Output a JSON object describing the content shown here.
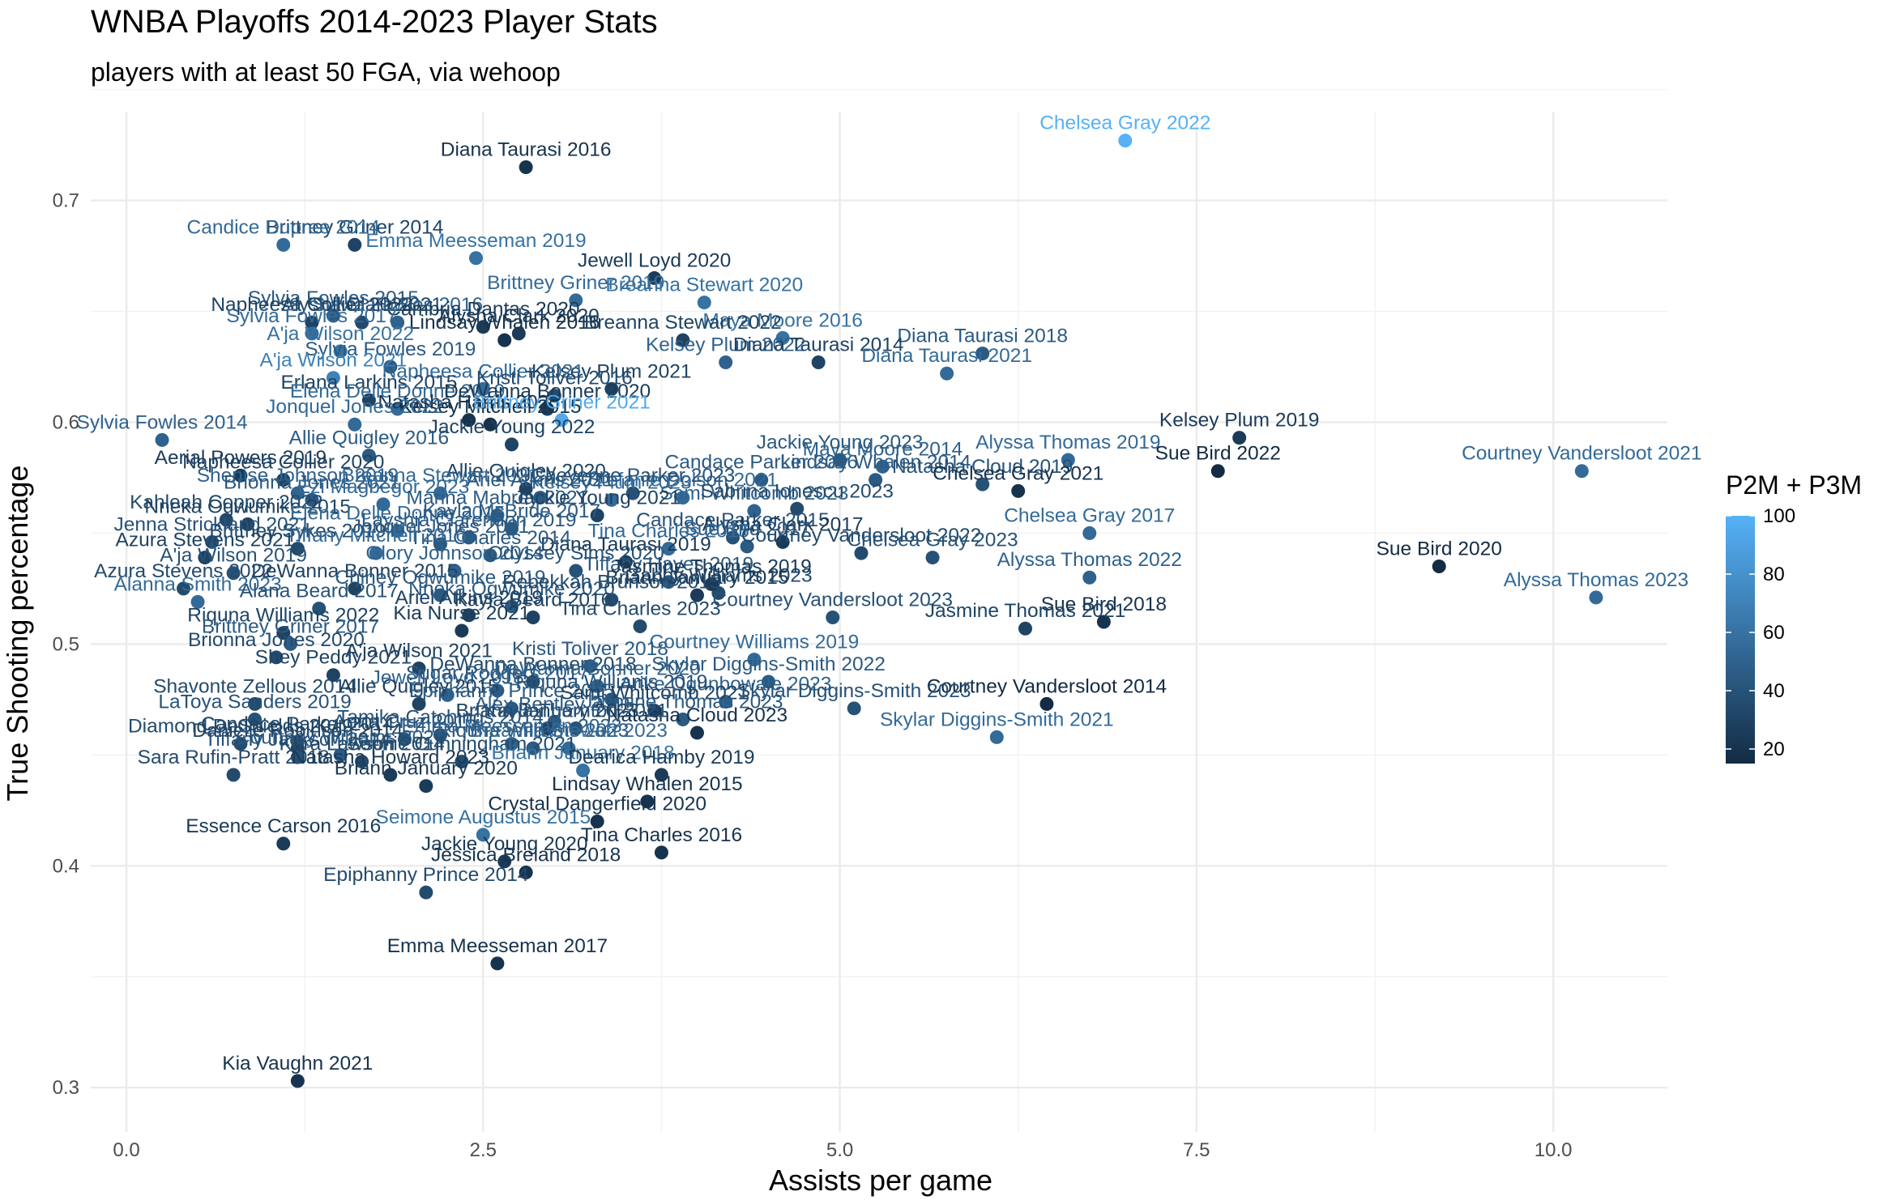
{
  "chart_data": {
    "type": "scatter",
    "title": "WNBA Playoffs 2014-2023 Player Stats",
    "subtitle": "players with at least 50 FGA, via wehoop",
    "xlabel": "Assists per game",
    "ylabel": "True Shooting percentage",
    "xlim": [
      -0.25,
      10.8
    ],
    "ylim": [
      0.28,
      0.74
    ],
    "xticks": [
      "0.0",
      "2.5",
      "5.0",
      "7.5",
      "10.0"
    ],
    "yticks": [
      "0.3",
      "0.4",
      "0.5",
      "0.6",
      "0.7"
    ],
    "grid": true,
    "legend": {
      "title": "P2M + P3M",
      "position": "right",
      "min": 15,
      "max": 100,
      "ticks": [
        "20",
        "40",
        "60",
        "80",
        "100"
      ],
      "low_color": "#132B43",
      "high_color": "#56B1F7"
    },
    "points": [
      {
        "label": "Chelsea Gray 2022",
        "x": 7.0,
        "y": 0.727,
        "c": 100
      },
      {
        "label": "Diana Taurasi 2016",
        "x": 2.8,
        "y": 0.715,
        "c": 20
      },
      {
        "label": "Brittney Griner 2014",
        "x": 1.6,
        "y": 0.68,
        "c": 30
      },
      {
        "label": "Candice Dupree 2014",
        "x": 1.1,
        "y": 0.68,
        "c": 55
      },
      {
        "label": "Emma Meesseman 2019",
        "x": 2.45,
        "y": 0.674,
        "c": 60
      },
      {
        "label": "Jewell Loyd 2020",
        "x": 3.7,
        "y": 0.665,
        "c": 25
      },
      {
        "label": "Brittney Griner 2019",
        "x": 3.15,
        "y": 0.655,
        "c": 55
      },
      {
        "label": "Breanna Stewart 2020",
        "x": 4.05,
        "y": 0.654,
        "c": 60
      },
      {
        "label": "Sylvia Fowles 2015",
        "x": 1.45,
        "y": 0.648,
        "c": 45
      },
      {
        "label": "Alysha Clark 2021",
        "x": 1.65,
        "y": 0.645,
        "c": 35
      },
      {
        "label": "Sylvia Fowles 2016",
        "x": 1.9,
        "y": 0.645,
        "c": 50
      },
      {
        "label": "Napheesa Collier 2022",
        "x": 1.3,
        "y": 0.645,
        "c": 30
      },
      {
        "label": "Cambria Dantas 2020",
        "x": 2.5,
        "y": 0.643,
        "c": 25
      },
      {
        "label": "Sylvia Fowles 2017",
        "x": 1.3,
        "y": 0.64,
        "c": 55
      },
      {
        "label": "Alysha Clark 2020",
        "x": 2.75,
        "y": 0.64,
        "c": 25
      },
      {
        "label": "Lindsay Whalen 2016",
        "x": 2.65,
        "y": 0.637,
        "c": 20
      },
      {
        "label": "Maya Moore 2016",
        "x": 4.6,
        "y": 0.638,
        "c": 60
      },
      {
        "label": "Breanna Stewart 2022",
        "x": 3.9,
        "y": 0.637,
        "c": 30
      },
      {
        "label": "Diana Taurasi 2018",
        "x": 6.0,
        "y": 0.631,
        "c": 45
      },
      {
        "label": "Kelsey Plum 2022",
        "x": 4.2,
        "y": 0.627,
        "c": 50
      },
      {
        "label": "Diana Taurasi 2014",
        "x": 4.85,
        "y": 0.627,
        "c": 30
      },
      {
        "label": "A'ja Wilson 2022",
        "x": 1.5,
        "y": 0.632,
        "c": 60
      },
      {
        "label": "Sylvia Fowles 2019",
        "x": 1.85,
        "y": 0.625,
        "c": 45
      },
      {
        "label": "Kelsey Plum 2021",
        "x": 3.4,
        "y": 0.615,
        "c": 30
      },
      {
        "label": "Napheesa Collier 2021",
        "x": 2.5,
        "y": 0.615,
        "c": 55
      },
      {
        "label": "A'ja Wilson 2021",
        "x": 1.45,
        "y": 0.62,
        "c": 70
      },
      {
        "label": "Diana Taurasi 2021",
        "x": 5.75,
        "y": 0.622,
        "c": 55
      },
      {
        "label": "Kristi Toliver 2016",
        "x": 3.0,
        "y": 0.612,
        "c": 35
      },
      {
        "label": "Erlana Larkins 2015",
        "x": 1.7,
        "y": 0.61,
        "c": 30
      },
      {
        "label": "Elena Delle Donne 2019",
        "x": 1.9,
        "y": 0.606,
        "c": 55
      },
      {
        "label": "DeWanna Bonner 2020",
        "x": 2.95,
        "y": 0.606,
        "c": 25
      },
      {
        "label": "Natasha Harris 2023",
        "x": 2.4,
        "y": 0.601,
        "c": 20
      },
      {
        "label": "Kelsey Mitchell 2015",
        "x": 2.55,
        "y": 0.599,
        "c": 20
      },
      {
        "label": "Brittney Griner 2021",
        "x": 3.05,
        "y": 0.601,
        "c": 95
      },
      {
        "label": "Jonquel Jones 2022",
        "x": 1.6,
        "y": 0.599,
        "c": 55
      },
      {
        "label": "Sylvia Fowles 2014",
        "x": 0.25,
        "y": 0.592,
        "c": 50
      },
      {
        "label": "Jackie Young 2022",
        "x": 2.7,
        "y": 0.59,
        "c": 30
      },
      {
        "label": "Allie Quigley 2016",
        "x": 1.7,
        "y": 0.585,
        "c": 45
      },
      {
        "label": "Kelsey Plum 2019",
        "x": 7.8,
        "y": 0.593,
        "c": 25
      },
      {
        "label": "Alyssa Thomas 2019",
        "x": 6.6,
        "y": 0.583,
        "c": 55
      },
      {
        "label": "Sue Bird 2022",
        "x": 7.65,
        "y": 0.578,
        "c": 15
      },
      {
        "label": "Courtney Vandersloot 2021",
        "x": 10.2,
        "y": 0.578,
        "c": 55
      },
      {
        "label": "Jackie Young 2023",
        "x": 5.0,
        "y": 0.583,
        "c": 45
      },
      {
        "label": "Maya Moore 2014",
        "x": 5.3,
        "y": 0.58,
        "c": 50
      },
      {
        "label": "Lindsay Whalen 2014",
        "x": 5.25,
        "y": 0.574,
        "c": 45
      },
      {
        "label": "Natasha Cloud 2019",
        "x": 6.0,
        "y": 0.572,
        "c": 40
      },
      {
        "label": "Candace Parker 2016",
        "x": 4.45,
        "y": 0.574,
        "c": 45
      },
      {
        "label": "Aerial Powers 2019",
        "x": 0.8,
        "y": 0.576,
        "c": 25
      },
      {
        "label": "Napheesa Collier 2020",
        "x": 1.1,
        "y": 0.574,
        "c": 30
      },
      {
        "label": "Kelsey Plum 2023",
        "x": 3.4,
        "y": 0.565,
        "c": 55
      },
      {
        "label": "Allie Quigley 2020",
        "x": 2.8,
        "y": 0.57,
        "c": 30
      },
      {
        "label": "Shenise Johnson 2019",
        "x": 1.2,
        "y": 0.568,
        "c": 50
      },
      {
        "label": "Brionna Jones 2021",
        "x": 1.3,
        "y": 0.565,
        "c": 45
      },
      {
        "label": "Breanna Stewart 2021",
        "x": 2.2,
        "y": 0.568,
        "c": 55
      },
      {
        "label": "Stefanie Dolson 2021",
        "x": 3.9,
        "y": 0.566,
        "c": 55
      },
      {
        "label": "Ariel Atkins 2021",
        "x": 2.9,
        "y": 0.566,
        "c": 45
      },
      {
        "label": "Cheyenne Parker 2023",
        "x": 3.55,
        "y": 0.568,
        "c": 40
      },
      {
        "label": "Chelsea Gray 2021",
        "x": 6.25,
        "y": 0.569,
        "c": 20
      },
      {
        "label": "Sami Whitcomb 2023",
        "x": 4.4,
        "y": 0.56,
        "c": 50
      },
      {
        "label": "Ezi Magbegor 2023",
        "x": 1.8,
        "y": 0.563,
        "c": 55
      },
      {
        "label": "Marina Mabrey 2021",
        "x": 2.6,
        "y": 0.558,
        "c": 45
      },
      {
        "label": "Jackie Young 2021",
        "x": 3.3,
        "y": 0.558,
        "c": 30
      },
      {
        "label": "Sabrina Ionescu 2023",
        "x": 4.7,
        "y": 0.561,
        "c": 35
      },
      {
        "label": "Chelsea Gray 2017",
        "x": 6.75,
        "y": 0.55,
        "c": 55
      },
      {
        "label": "Kahleah Copper 2022",
        "x": 0.7,
        "y": 0.556,
        "c": 35
      },
      {
        "label": "Nneka Ogwumike 2015",
        "x": 0.85,
        "y": 0.554,
        "c": 30
      },
      {
        "label": "Elena Delle Donne 2015",
        "x": 1.9,
        "y": 0.551,
        "c": 55
      },
      {
        "label": "Kayla McBride 2017",
        "x": 2.7,
        "y": 0.552,
        "c": 45
      },
      {
        "label": "Candace Parker 2015",
        "x": 4.25,
        "y": 0.548,
        "c": 40
      },
      {
        "label": "Alysha Clark 2017",
        "x": 4.6,
        "y": 0.546,
        "c": 25
      },
      {
        "label": "Layshia Clarendon 2019",
        "x": 2.4,
        "y": 0.548,
        "c": 45
      },
      {
        "label": "Sue Bird 2017",
        "x": 4.35,
        "y": 0.544,
        "c": 45
      },
      {
        "label": "Tina Charles 2015",
        "x": 3.8,
        "y": 0.543,
        "c": 55
      },
      {
        "label": "Courtney Vandersloot 2022",
        "x": 5.15,
        "y": 0.541,
        "c": 35
      },
      {
        "label": "Chelsea Gray 2023",
        "x": 5.65,
        "y": 0.539,
        "c": 40
      },
      {
        "label": "Diana Taurasi 2019",
        "x": 3.5,
        "y": 0.537,
        "c": 25
      },
      {
        "label": "Tina Charles 2014",
        "x": 2.55,
        "y": 0.54,
        "c": 45
      },
      {
        "label": "Brittney Sykes 2019",
        "x": 1.2,
        "y": 0.543,
        "c": 35
      },
      {
        "label": "Tiffany Mitchell 2016",
        "x": 1.75,
        "y": 0.541,
        "c": 55
      },
      {
        "label": "Jonquel Jones 2021",
        "x": 2.2,
        "y": 0.545,
        "c": 45
      },
      {
        "label": "Azura Stevens 2021",
        "x": 0.55,
        "y": 0.539,
        "c": 30
      },
      {
        "label": "Jenna Strickland 2021",
        "x": 0.6,
        "y": 0.546,
        "c": 40
      },
      {
        "label": "A'ja Wilson 2019",
        "x": 0.75,
        "y": 0.532,
        "c": 40
      },
      {
        "label": "Glory Johnson 2014",
        "x": 2.3,
        "y": 0.533,
        "c": 50
      },
      {
        "label": "Odyssey Sims 2020",
        "x": 3.15,
        "y": 0.533,
        "c": 40
      },
      {
        "label": "Gabby Williams 2023",
        "x": 4.15,
        "y": 0.523,
        "c": 35
      },
      {
        "label": "Tiffany Hayes 2019",
        "x": 3.8,
        "y": 0.528,
        "c": 45
      },
      {
        "label": "Alyssa Thomas 2022",
        "x": 6.75,
        "y": 0.53,
        "c": 50
      },
      {
        "label": "Sue Bird 2020",
        "x": 9.2,
        "y": 0.535,
        "c": 15
      },
      {
        "label": "Alyssa Thomas 2023",
        "x": 10.3,
        "y": 0.521,
        "c": 55
      },
      {
        "label": "Jasmine Thomas 2019",
        "x": 4.1,
        "y": 0.527,
        "c": 25
      },
      {
        "label": "Briann January 2015",
        "x": 4.0,
        "y": 0.522,
        "c": 25
      },
      {
        "label": "Azura Stevens 2022",
        "x": 0.4,
        "y": 0.525,
        "c": 35
      },
      {
        "label": "DeWanna Bonner 2015",
        "x": 1.6,
        "y": 0.525,
        "c": 30
      },
      {
        "label": "Chiney Ogwumike 2019",
        "x": 2.2,
        "y": 0.522,
        "c": 45
      },
      {
        "label": "Alanna Smith 2023",
        "x": 0.5,
        "y": 0.519,
        "c": 55
      },
      {
        "label": "Nneka Ogwumike 2020",
        "x": 2.7,
        "y": 0.517,
        "c": 45
      },
      {
        "label": "Rebekkah Brunson 2015",
        "x": 3.4,
        "y": 0.52,
        "c": 35
      },
      {
        "label": "Ariel Atkins 2019",
        "x": 2.4,
        "y": 0.513,
        "c": 30
      },
      {
        "label": "Kayla Beard 2016",
        "x": 2.85,
        "y": 0.512,
        "c": 30
      },
      {
        "label": "Alana Beard 2017",
        "x": 1.35,
        "y": 0.516,
        "c": 40
      },
      {
        "label": "Courtney Vandersloot 2023",
        "x": 4.95,
        "y": 0.512,
        "c": 40
      },
      {
        "label": "Sue Bird 2018",
        "x": 6.85,
        "y": 0.51,
        "c": 20
      },
      {
        "label": "Jasmine Thomas 2021",
        "x": 6.3,
        "y": 0.507,
        "c": 30
      },
      {
        "label": "Tina Charles 2023",
        "x": 3.6,
        "y": 0.508,
        "c": 35
      },
      {
        "label": "Kia Nurse 2021",
        "x": 2.35,
        "y": 0.506,
        "c": 25
      },
      {
        "label": "Riquna Williams 2022",
        "x": 1.1,
        "y": 0.505,
        "c": 30
      },
      {
        "label": "Brittney Griner 2017",
        "x": 1.15,
        "y": 0.5,
        "c": 45
      },
      {
        "label": "Courtney Williams 2019",
        "x": 4.4,
        "y": 0.493,
        "c": 55
      },
      {
        "label": "Brionna Jones 2020",
        "x": 1.05,
        "y": 0.494,
        "c": 35
      },
      {
        "label": "A'ja Wilson 2021",
        "x": 2.05,
        "y": 0.489,
        "c": 30
      },
      {
        "label": "Kristi Toliver 2018",
        "x": 3.25,
        "y": 0.49,
        "c": 45
      },
      {
        "label": "Shey Peddy 2021",
        "x": 1.45,
        "y": 0.486,
        "c": 30
      },
      {
        "label": "DeWanna Bonner 2018",
        "x": 2.85,
        "y": 0.483,
        "c": 35
      },
      {
        "label": "DeWanna Bonner 2020",
        "x": 3.3,
        "y": 0.481,
        "c": 50
      },
      {
        "label": "Skylar Diggins-Smith 2022",
        "x": 4.5,
        "y": 0.483,
        "c": 45
      },
      {
        "label": "Sugar Rodgers 2017",
        "x": 2.6,
        "y": 0.479,
        "c": 45
      },
      {
        "label": "Jewell Loyd 2018",
        "x": 2.25,
        "y": 0.477,
        "c": 50
      },
      {
        "label": "Arike Ogunbowale 2023",
        "x": 4.2,
        "y": 0.474,
        "c": 50
      },
      {
        "label": "Riquna Williams 2019",
        "x": 3.4,
        "y": 0.475,
        "c": 40
      },
      {
        "label": "Shavonte Zellous 2014",
        "x": 0.9,
        "y": 0.473,
        "c": 35
      },
      {
        "label": "Allie Quigley 2015",
        "x": 2.05,
        "y": 0.473,
        "c": 30
      },
      {
        "label": "Epiphanny Prince 2015",
        "x": 2.7,
        "y": 0.471,
        "c": 45
      },
      {
        "label": "Courtney Vandersloot 2014",
        "x": 6.45,
        "y": 0.473,
        "c": 15
      },
      {
        "label": "Sami Whitcomb 2021",
        "x": 3.7,
        "y": 0.47,
        "c": 30
      },
      {
        "label": "Skylar Diggins-Smith 2023",
        "x": 5.1,
        "y": 0.471,
        "c": 40
      },
      {
        "label": "Jasmine Thomas 2023",
        "x": 3.9,
        "y": 0.466,
        "c": 45
      },
      {
        "label": "Alex Bentley 2015",
        "x": 3.0,
        "y": 0.465,
        "c": 45
      },
      {
        "label": "Briann January 2023",
        "x": 2.95,
        "y": 0.462,
        "c": 30
      },
      {
        "label": "Skylar Diggins-Smith 2021",
        "x": 6.1,
        "y": 0.458,
        "c": 55
      },
      {
        "label": "Natasha Cloud 2023",
        "x": 4.0,
        "y": 0.46,
        "c": 20
      },
      {
        "label": "LaToya Sanders 2019",
        "x": 0.9,
        "y": 0.466,
        "c": 40
      },
      {
        "label": "Kayla Thornton 2021",
        "x": 3.15,
        "y": 0.462,
        "c": 40
      },
      {
        "label": "Tamika Catchings 2014",
        "x": 2.2,
        "y": 0.459,
        "c": 40
      },
      {
        "label": "Anna Cruz 2015",
        "x": 1.95,
        "y": 0.457,
        "c": 40
      },
      {
        "label": "Candace Parker 2014",
        "x": 1.2,
        "y": 0.456,
        "c": 30
      },
      {
        "label": "Diamond DeShields 2019",
        "x": 0.8,
        "y": 0.455,
        "c": 35
      },
      {
        "label": "Danielle Robinson 2014",
        "x": 1.2,
        "y": 0.453,
        "c": 30
      },
      {
        "label": "Riquna Williams 2023",
        "x": 2.85,
        "y": 0.453,
        "c": 45
      },
      {
        "label": "Breanna Stewart 2023",
        "x": 3.1,
        "y": 0.453,
        "c": 55
      },
      {
        "label": "Emma Meesseman 2023",
        "x": 2.7,
        "y": 0.455,
        "c": 50
      },
      {
        "label": "Courtney Williams 2021",
        "x": 1.5,
        "y": 0.45,
        "c": 45
      },
      {
        "label": "Tiffany Jackson 2014",
        "x": 1.2,
        "y": 0.449,
        "c": 40
      },
      {
        "label": "Kara Lawson 2014",
        "x": 1.65,
        "y": 0.447,
        "c": 35
      },
      {
        "label": "Sophie Cunningham 2021",
        "x": 2.35,
        "y": 0.447,
        "c": 35
      },
      {
        "label": "Briann January 2018",
        "x": 3.2,
        "y": 0.443,
        "c": 60
      },
      {
        "label": "Dearica Hamby 2019",
        "x": 3.75,
        "y": 0.441,
        "c": 25
      },
      {
        "label": "Sara Rufin-Pratt 2018",
        "x": 0.75,
        "y": 0.441,
        "c": 35
      },
      {
        "label": "Natasha Howard 2023",
        "x": 1.85,
        "y": 0.441,
        "c": 25
      },
      {
        "label": "Briann January 2020",
        "x": 2.1,
        "y": 0.436,
        "c": 25
      },
      {
        "label": "Lindsay Whalen 2015",
        "x": 3.65,
        "y": 0.429,
        "c": 20
      },
      {
        "label": "Seimone Augustus 2015",
        "x": 2.5,
        "y": 0.414,
        "c": 60
      },
      {
        "label": "Crystal Dangerfield 2020",
        "x": 3.3,
        "y": 0.42,
        "c": 20
      },
      {
        "label": "Essence Carson 2016",
        "x": 1.1,
        "y": 0.41,
        "c": 25
      },
      {
        "label": "Jackie Young 2020",
        "x": 2.65,
        "y": 0.402,
        "c": 25
      },
      {
        "label": "Tina Charles 2016",
        "x": 3.75,
        "y": 0.406,
        "c": 20
      },
      {
        "label": "Jessica Breland 2018",
        "x": 2.8,
        "y": 0.397,
        "c": 20
      },
      {
        "label": "Epiphanny Prince 2014",
        "x": 2.1,
        "y": 0.388,
        "c": 35
      },
      {
        "label": "Emma Meesseman 2017",
        "x": 2.6,
        "y": 0.356,
        "c": 20
      },
      {
        "label": "Kia Vaughn 2021",
        "x": 1.2,
        "y": 0.303,
        "c": 20
      }
    ]
  }
}
